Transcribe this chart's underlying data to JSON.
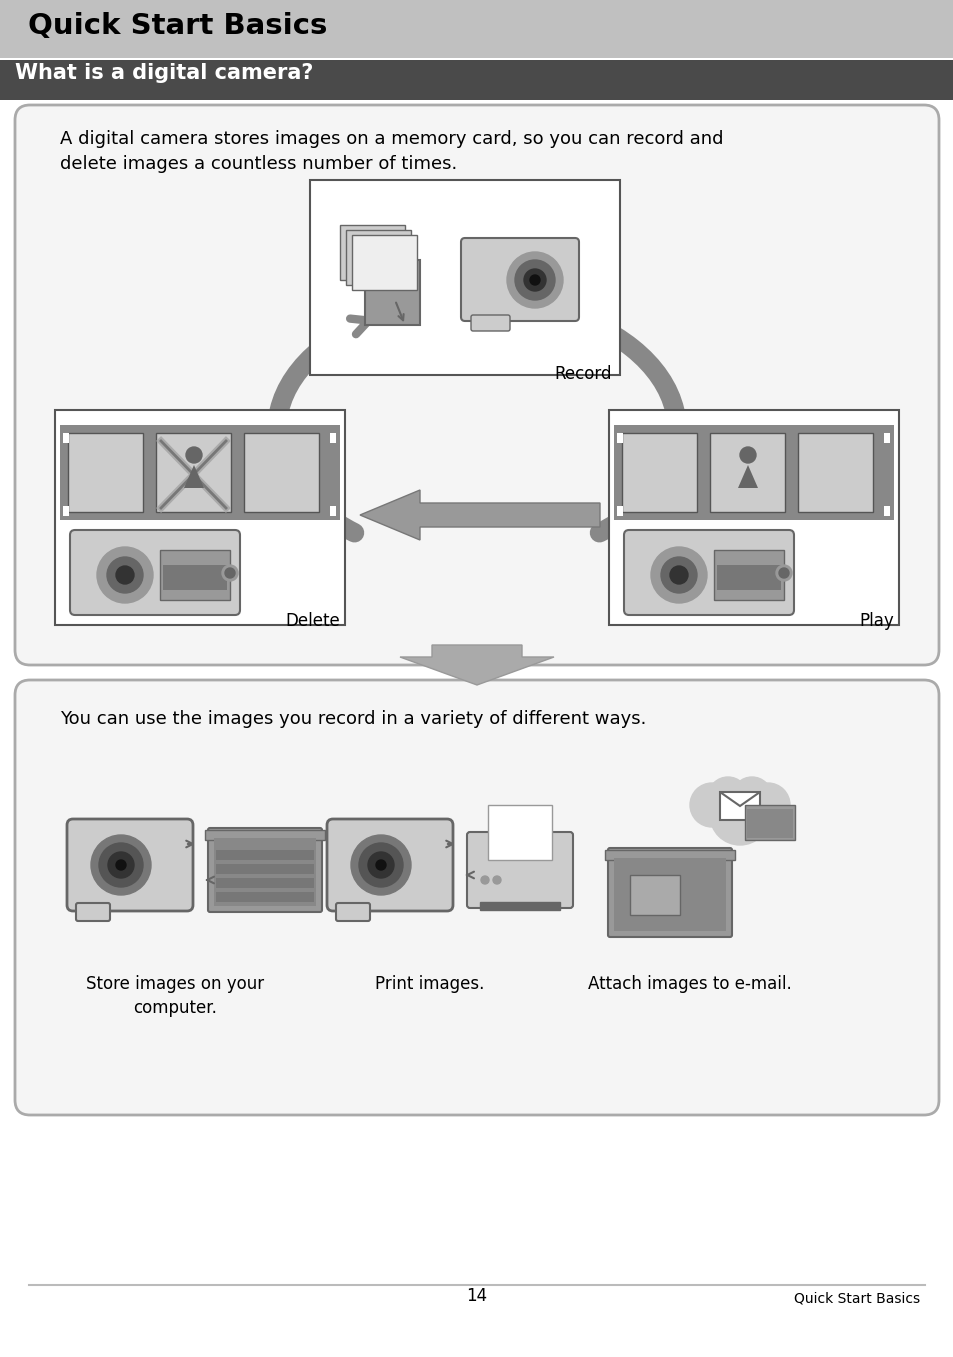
{
  "page_bg": "#ffffff",
  "header_bg": "#c0c0c0",
  "header_text": "Quick Start Basics",
  "header_text_color": "#000000",
  "subheader_bg": "#4a4a4a",
  "subheader_text": "What is a digital camera?",
  "subheader_text_color": "#ffffff",
  "box1_bg": "#f5f5f5",
  "box1_text": "A digital camera stores images on a memory card, so you can record and\ndelete images a countless number of times.",
  "box2_bg": "#f5f5f5",
  "box2_text": "You can use the images you record in a variety of different ways.",
  "label_record": "Record",
  "label_delete": "Delete",
  "label_play": "Play",
  "label_store": "Store images on your\ncomputer.",
  "label_print": "Print images.",
  "label_attach": "Attach images to e-mail.",
  "footer_line_color": "#bbbbbb",
  "footer_page": "14",
  "footer_label": "Quick Start Basics",
  "font_size_header": 21,
  "font_size_subheader": 15,
  "font_size_body": 13,
  "font_size_label": 12,
  "font_size_footer": 10,
  "arrow_color": "#888888",
  "box_edge_color": "#aaaaaa",
  "illus_dark": "#666666",
  "illus_mid": "#999999",
  "illus_light": "#cccccc",
  "illus_white": "#eeeeee"
}
